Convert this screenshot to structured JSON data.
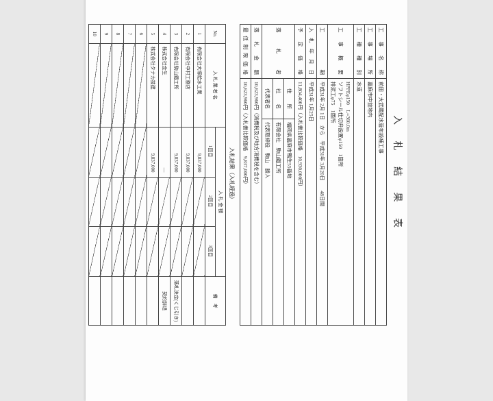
{
  "title": "入 札 結 果 表",
  "rows": {
    "project_name_label": "工 事 名 称",
    "project_name": "前田・大武蔵配水管布設補工事",
    "location_label": "工 事 場 所",
    "location": "嘉麻市中益地内",
    "type_label": "工 種 種 別",
    "type": "水道",
    "summary_label": "工 事 概 要",
    "summary": "HPPEφ150　L=360.0m\nソフトシール仕切弁設置φ150　1箇所\n排泥工φ75　1箇所",
    "period_label": "工　　　期",
    "period": "平成31年 2月 1日　から　平成31年 3月20日　　48日間",
    "bid_date_label": "入 札 年 月 日",
    "bid_date": "平成31年 1月25日",
    "budget_label": "予 定 価 格",
    "budget": "11,804,400円（入札書比較価格　10,930,000円）",
    "winner_label": "落　札　者",
    "winner_addr_label": "住　　所",
    "winner_addr": "福岡県嘉麻市鴨生55番地",
    "winner_co_label": "社　　名",
    "winner_co": "有限会社　駒山鐵工所",
    "winner_rep_label": "代表者名",
    "winner_rep": "代表取締役　駒山　勝人",
    "award_label": "落 札 金 額",
    "award": "10,623,960円（消費税及び地方消費税を含む）",
    "min_label": "最低制限価格",
    "min": "10,623,960円（入札書比較価格　9,837,000円）"
  },
  "subtitle": "入札結果（入札経過）",
  "bidders_header": {
    "no": "No.",
    "name": "入 札 業 者 名",
    "amount": "入 札 金 額",
    "r1": "1回目",
    "r2": "2回目",
    "r3": "3回目",
    "remark": "備　考"
  },
  "bidders": [
    {
      "no": "1",
      "name": "有限会社大塚給水工業",
      "r1": "9,837,000",
      "remark": ""
    },
    {
      "no": "2",
      "name": "有限会社中村工務店",
      "r1": "9,837,000",
      "remark": ""
    },
    {
      "no": "3",
      "name": "有限会社駒山鐵工所",
      "r1": "9,837,000",
      "remark": "落札決定(くじ引き)"
    },
    {
      "no": "4",
      "name": "株式会社金生",
      "r1": "―",
      "remark": "契約辞退"
    },
    {
      "no": "5",
      "name": "株式会社タナカ技建",
      "r1": "9,837,000",
      "remark": ""
    },
    {
      "no": "6",
      "name": "",
      "r1": "",
      "remark": ""
    },
    {
      "no": "7",
      "name": "",
      "r1": "",
      "remark": ""
    },
    {
      "no": "8",
      "name": "",
      "r1": "",
      "remark": ""
    },
    {
      "no": "9",
      "name": "",
      "r1": "",
      "remark": ""
    },
    {
      "no": "10",
      "name": "",
      "r1": "",
      "remark": ""
    }
  ]
}
